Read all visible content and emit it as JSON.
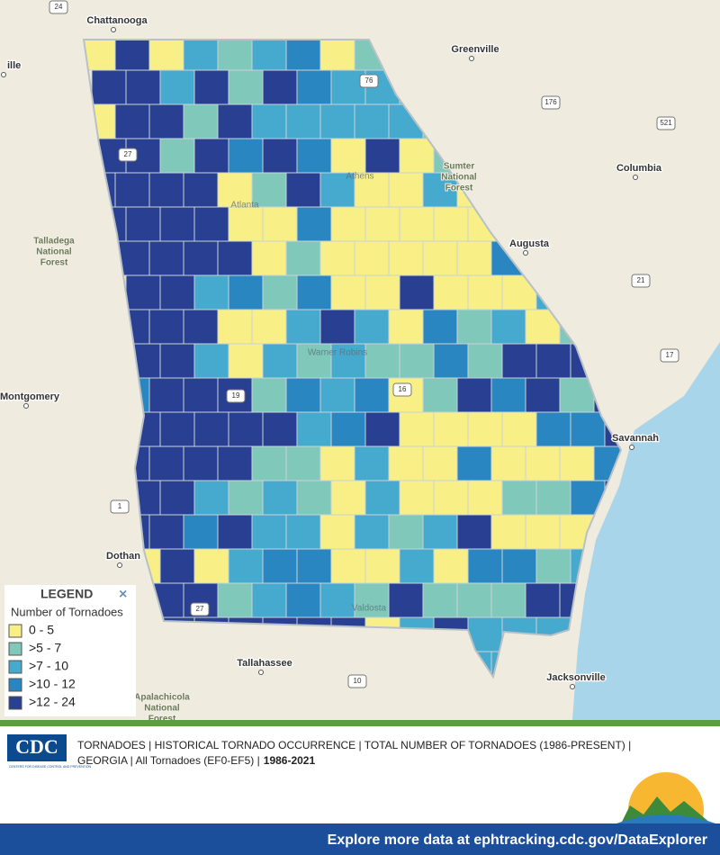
{
  "places": [
    "Chattanooga",
    "Greenville",
    "Columbia",
    "Augusta",
    "Savannah",
    "Jacksonville",
    "Tallahassee",
    "Montgomery",
    "Dothan",
    "ille"
  ],
  "forests": [
    [
      "Talladega",
      "National",
      "Forest"
    ],
    [
      "Sumter",
      "National",
      "Forest"
    ],
    [
      "Apalachicola",
      "National",
      "Forest"
    ]
  ],
  "inner_places": [
    "Athens",
    "Atlanta",
    "Warner Robins",
    "Valdosta"
  ],
  "road_shields": [
    "24",
    "76",
    "176",
    "521",
    "21",
    "17",
    "1",
    "10",
    "27",
    "19",
    "16",
    "27"
  ],
  "legend": {
    "title": "LEGEND",
    "subtitle": "Number of Tornadoes",
    "classes": [
      {
        "label": "0 - 5",
        "color": "#f8ef86"
      },
      {
        "label": ">5 - 7",
        "color": "#80c8b9"
      },
      {
        "label": ">7 - 10",
        "color": "#45aacd"
      },
      {
        "label": ">10 - 12",
        "color": "#2a86c0"
      },
      {
        "label": ">12 - 24",
        "color": "#283f92"
      }
    ]
  },
  "logo": {
    "text": "CDC",
    "subtext": "CENTERS FOR DISEASE CONTROL AND PREVENTION"
  },
  "footer": {
    "line1": "TORNADOES | HISTORICAL TORNADO OCCURRENCE | TOTAL NUMBER OF TORNADOES (1986-PRESENT) |",
    "line2": "GEORGIA | All Tornadoes (EF0-EF5) |",
    "years": "1986-2021",
    "link": "Explore more data at ephtracking.cdc.gov/DataExplorer"
  }
}
